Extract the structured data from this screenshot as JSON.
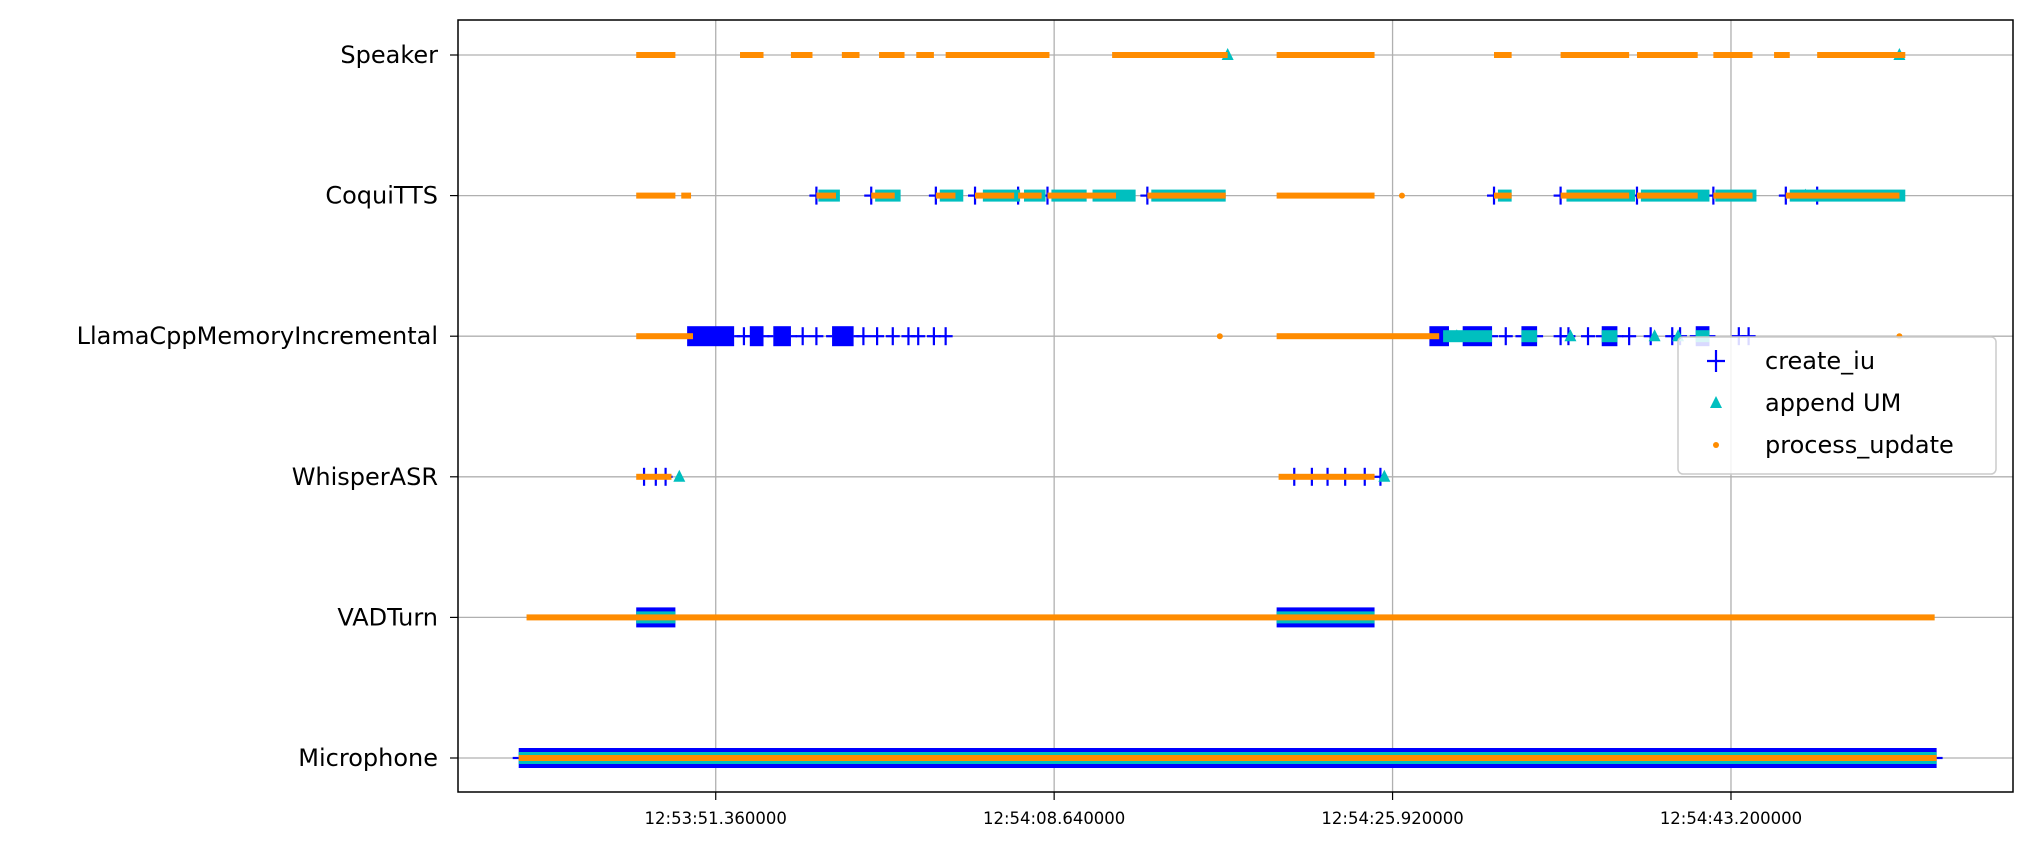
{
  "chart_data": {
    "type": "scatter",
    "title": "",
    "xlabel": "",
    "ylabel": "",
    "grid": true,
    "legend_location": "right",
    "categories": [
      "Microphone",
      "VADTurn",
      "WhisperASR",
      "LlamaCppMemoryIncremental",
      "CoquiTTS",
      "Speaker"
    ],
    "x_ticks": [
      {
        "label": "12:53:51.360000",
        "seconds": 51.36
      },
      {
        "label": "12:54:08.640000",
        "seconds": 68.64
      },
      {
        "label": "12:54:25.920000",
        "seconds": 85.92
      },
      {
        "label": "12:54:43.200000",
        "seconds": 103.2
      }
    ],
    "xlim_seconds": [
      38.2,
      117.6
    ],
    "legend": [
      {
        "name": "create_iu",
        "marker": "plus",
        "color": "#0000ff"
      },
      {
        "name": "append UM",
        "marker": "triangle",
        "color": "#00bfbf"
      },
      {
        "name": "process_update",
        "marker": "dot",
        "color": "#ff8c00"
      }
    ],
    "series": [
      {
        "name": "create_iu",
        "color": "#0000ff",
        "events": [
          {
            "category": "Microphone",
            "dense": [
              [
                41.3,
                113.7
              ]
            ]
          },
          {
            "category": "VADTurn",
            "dense": [
              [
                47.3,
                49.3
              ],
              [
                80.0,
                85.0
              ]
            ]
          },
          {
            "category": "WhisperASR",
            "points": [
              47.7,
              48.3,
              48.8,
              80.9,
              81.8,
              82.6,
              83.5,
              84.5,
              85.3
            ]
          },
          {
            "category": "LlamaCppMemoryIncremental",
            "dense": [
              [
                49.9,
                52.3
              ],
              [
                53.1,
                53.8
              ],
              [
                54.3,
                55.2
              ],
              [
                57.3,
                58.4
              ],
              [
                87.8,
                88.8
              ],
              [
                89.5,
                91.0
              ],
              [
                92.5,
                93.3
              ],
              [
                96.6,
                97.4
              ],
              [
                101.4,
                102.1
              ]
            ],
            "points": [
              52.8,
              55.8,
              56.5,
              58.9,
              59.6,
              60.4,
              61.2,
              61.7,
              62.5,
              63.1,
              88.2,
              91.7,
              94.5,
              94.9,
              95.9,
              98.0,
              99.1,
              100.2,
              100.6,
              103.6,
              104.1
            ]
          },
          {
            "category": "CoquiTTS",
            "points": [
              56.5,
              59.3,
              62.6,
              64.6,
              66.8,
              68.3,
              73.4,
              91.1,
              94.5,
              98.4,
              102.3,
              106.0,
              107.6
            ]
          }
        ]
      },
      {
        "name": "append UM",
        "color": "#00bfbf",
        "events": [
          {
            "category": "Microphone",
            "dense": [
              [
                41.3,
                113.7
              ]
            ]
          },
          {
            "category": "VADTurn",
            "dense": [
              [
                47.3,
                49.3
              ],
              [
                80.0,
                85.0
              ]
            ]
          },
          {
            "category": "WhisperASR",
            "points": [
              49.5,
              85.5
            ]
          },
          {
            "category": "LlamaCppMemoryIncremental",
            "dense": [
              [
                88.5,
                91.0
              ],
              [
                92.5,
                93.3
              ],
              [
                96.6,
                97.4
              ],
              [
                101.4,
                102.1
              ]
            ],
            "points": [
              89.2,
              95.0,
              99.3,
              100.5
            ]
          },
          {
            "category": "CoquiTTS",
            "dense": [
              [
                56.6,
                57.7
              ],
              [
                59.5,
                60.8
              ],
              [
                62.8,
                64.0
              ],
              [
                65.0,
                66.9
              ],
              [
                67.1,
                68.2
              ],
              [
                68.5,
                70.3
              ],
              [
                70.6,
                72.8
              ],
              [
                73.6,
                77.4
              ],
              [
                91.3,
                92.0
              ],
              [
                94.8,
                98.3
              ],
              [
                98.6,
                102.1
              ],
              [
                102.4,
                104.5
              ],
              [
                106.2,
                112.1
              ]
            ],
            "points": [
              107.0
            ]
          },
          {
            "category": "Speaker",
            "points": [
              77.5,
              111.8
            ]
          }
        ]
      },
      {
        "name": "process_update",
        "color": "#ff8c00",
        "events": [
          {
            "category": "Microphone",
            "dense": [
              [
                41.3,
                113.7
              ]
            ]
          },
          {
            "category": "VADTurn",
            "dense": [
              [
                41.7,
                113.6
              ]
            ]
          },
          {
            "category": "WhisperASR",
            "dense": [
              [
                47.3,
                49.1
              ],
              [
                80.1,
                85.0
              ]
            ]
          },
          {
            "category": "LlamaCppMemoryIncremental",
            "dense": [
              [
                47.3,
                50.2
              ],
              [
                80.0,
                88.3
              ]
            ],
            "points": [
              77.1,
              111.8
            ]
          },
          {
            "category": "CoquiTTS",
            "dense": [
              [
                47.3,
                49.3
              ],
              [
                80.0,
                85.0
              ],
              [
                49.6,
                50.1
              ],
              [
                56.5,
                57.5
              ],
              [
                59.3,
                60.5
              ],
              [
                62.6,
                63.6
              ],
              [
                64.6,
                66.6
              ],
              [
                66.8,
                68.0
              ],
              [
                68.3,
                71.8
              ],
              [
                73.4,
                77.4
              ],
              [
                91.1,
                92.0
              ],
              [
                94.5,
                98.0
              ],
              [
                98.4,
                101.5
              ],
              [
                102.3,
                104.3
              ],
              [
                106.0,
                111.8
              ]
            ],
            "points": [
              86.4
            ]
          },
          {
            "category": "Speaker",
            "dense": [
              [
                47.3,
                49.3
              ],
              [
                80.0,
                85.0
              ],
              [
                52.6,
                53.8
              ],
              [
                55.2,
                56.3
              ],
              [
                57.8,
                58.7
              ],
              [
                59.7,
                61.0
              ],
              [
                61.6,
                62.5
              ],
              [
                63.1,
                68.4
              ],
              [
                71.6,
                77.5
              ],
              [
                91.1,
                92.0
              ],
              [
                94.5,
                98.0
              ],
              [
                98.4,
                101.5
              ],
              [
                102.3,
                104.3
              ],
              [
                105.4,
                106.2
              ],
              [
                107.6,
                112.1
              ]
            ]
          }
        ]
      }
    ]
  }
}
